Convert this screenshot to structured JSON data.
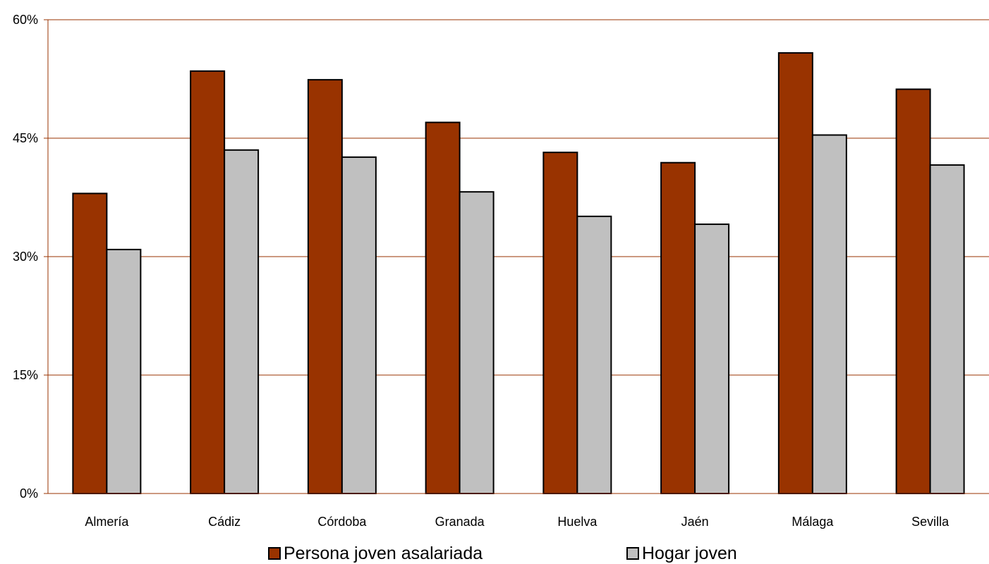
{
  "chart_data": {
    "type": "bar",
    "categories": [
      "Almería",
      "Cádiz",
      "Córdoba",
      "Granada",
      "Huelva",
      "Jaén",
      "Málaga",
      "Sevilla"
    ],
    "series": [
      {
        "name": "Persona joven asalariada",
        "color": "#993300",
        "values": [
          38.0,
          53.5,
          52.4,
          47.0,
          43.2,
          41.9,
          55.8,
          51.2
        ]
      },
      {
        "name": "Hogar joven",
        "color": "#C0C0C0",
        "values": [
          30.9,
          43.5,
          42.6,
          38.2,
          35.1,
          34.1,
          45.4,
          41.6
        ]
      }
    ],
    "ylim": [
      0,
      60
    ],
    "yticks": [
      0,
      15,
      30,
      45,
      60
    ],
    "ytick_labels": [
      "0%",
      "15%",
      "30%",
      "45%",
      "60%"
    ],
    "gridline_color": "#993300",
    "grid": true,
    "legend_position": "bottom",
    "title": "",
    "xlabel": "",
    "ylabel": ""
  }
}
